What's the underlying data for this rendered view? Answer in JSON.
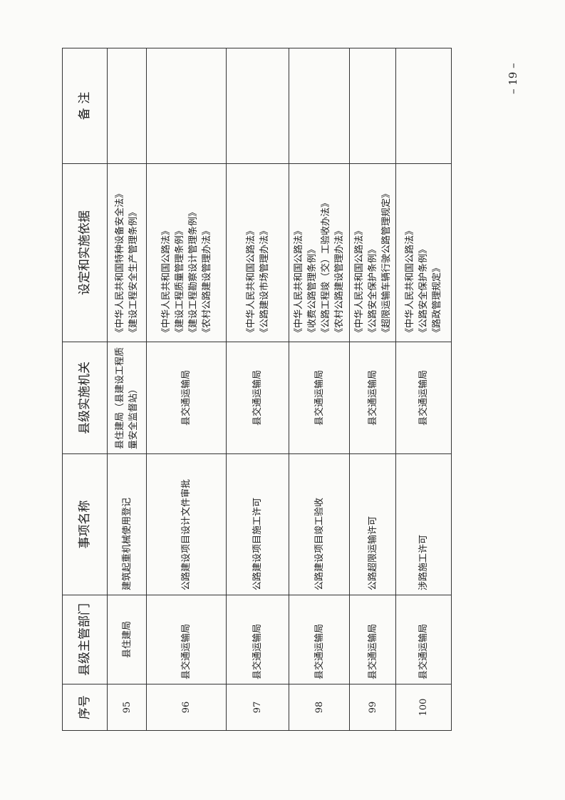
{
  "header": {
    "no": "序号",
    "dept": "县级主管部门",
    "item": "事项名称",
    "agency": "县级实施机关",
    "basis": "设定和实施依据",
    "remark": "备 注"
  },
  "rows": [
    {
      "no": "95",
      "dept": "县住建局",
      "item": "建筑起重机械使用登记",
      "agency": "县住建局（县建设工程质量安全监督站）",
      "basis": [
        "《中华人民共和国特种设备安全法》",
        "《建设工程安全生产管理条例》"
      ],
      "remark": ""
    },
    {
      "no": "96",
      "dept": "县交通运输局",
      "item": "公路建设项目设计文件审批",
      "agency": "县交通运输局",
      "basis": [
        "《中华人民共和国公路法》",
        "《建设工程质量管理条例》",
        "《建设工程勘察设计管理条例》",
        "《农村公路建设管理办法》"
      ],
      "remark": ""
    },
    {
      "no": "97",
      "dept": "县交通运输局",
      "item": "公路建设项目施工许可",
      "agency": "县交通运输局",
      "basis": [
        "《中华人民共和国公路法》",
        "《公路建设市场管理办法》"
      ],
      "remark": ""
    },
    {
      "no": "98",
      "dept": "县交通运输局",
      "item": "公路建设项目竣工验收",
      "agency": "县交通运输局",
      "basis": [
        "《中华人民共和国公路法》",
        "《收费公路管理条例》",
        "《公路工程竣（交）工验收办法》",
        "《农村公路建设管理办法》"
      ],
      "remark": ""
    },
    {
      "no": "99",
      "dept": "县交通运输局",
      "item": "公路超限运输许可",
      "agency": "县交通运输局",
      "basis": [
        "《中华人民共和国公路法》",
        "《公路安全保护条例》",
        "《超限运输车辆行驶公路管理规定》"
      ],
      "remark": ""
    },
    {
      "no": "100",
      "dept": "县交通运输局",
      "item": "涉路施工许可",
      "agency": "县交通运输局",
      "basis": [
        "《中华人民共和国公路法》",
        "《公路安全保护条例》",
        "《路政管理规定》"
      ],
      "remark": ""
    }
  ],
  "page_number": "– 19 –"
}
